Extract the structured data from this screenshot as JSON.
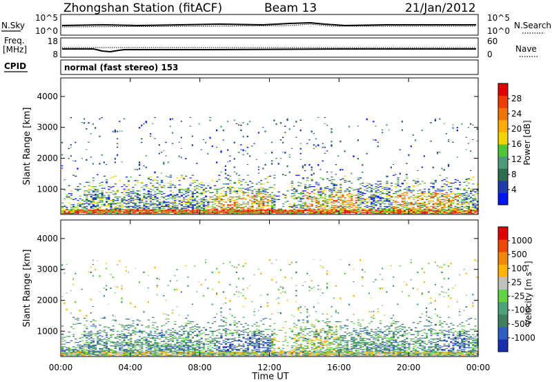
{
  "header": {
    "station": "Zhongshan Station (fitACF)",
    "beam": "Beam 13",
    "date": "21/Jan/2012"
  },
  "top_panels": {
    "nsky": {
      "label": "N.Sky",
      "tick_top": "10^5",
      "tick_bottom": "10^0"
    },
    "nsearch": {
      "label": "N.Search",
      "tick_top": "10^5",
      "tick_bottom": "10^0"
    },
    "freq": {
      "label_line1": "Freq.",
      "label_line2": "[MHz]",
      "tick_top": "18",
      "tick_bottom": "8"
    },
    "nave": {
      "label": "Nave",
      "tick_top": "60",
      "tick_bottom": "0"
    },
    "cpid": {
      "label": "CPID",
      "value": "normal (fast stereo) 153"
    }
  },
  "chart_data": [
    {
      "type": "heatmap",
      "name": "power",
      "ylabel": "Slant Range [km]",
      "yticks": [
        1000,
        2000,
        3000,
        4000
      ],
      "ylim": [
        180,
        4600
      ],
      "xlabel": "Time UT",
      "xticks": [
        "00:00",
        "04:00",
        "08:00",
        "12:00",
        "16:00",
        "20:00",
        "00:00"
      ],
      "xlim_hours": [
        0,
        24
      ],
      "colorbar": {
        "label": "Power [dB]",
        "ticks": [
          "4",
          "8",
          "12",
          "16",
          "20",
          "24",
          "28"
        ],
        "colors": [
          "#0018f0",
          "#203ca8",
          "#2d6e50",
          "#4e9a7a",
          "#52c43a",
          "#f4d400",
          "#ffac00",
          "#f07400",
          "#f03c00",
          "#e00000"
        ]
      }
    },
    {
      "type": "heatmap",
      "name": "velocity",
      "ylabel": "Slant Range [km]",
      "yticks": [
        1000,
        2000,
        3000,
        4000
      ],
      "ylim": [
        180,
        4600
      ],
      "xlabel": "Time UT",
      "xticks": [
        "00:00",
        "04:00",
        "08:00",
        "12:00",
        "16:00",
        "20:00",
        "00:00"
      ],
      "xlim_hours": [
        0,
        24
      ],
      "colorbar": {
        "label": "Velocity [m s⁻¹]",
        "ticks": [
          "1000",
          "500",
          "100",
          "25",
          "-25",
          "-100",
          "-500",
          "-1000"
        ],
        "colors": [
          "#1830b0",
          "#2e5ec0",
          "#3f7e60",
          "#4ea27a",
          "#64d244",
          "#c0c0c0",
          "#ffb400",
          "#f08800",
          "#f04800",
          "#e00000"
        ]
      }
    }
  ]
}
